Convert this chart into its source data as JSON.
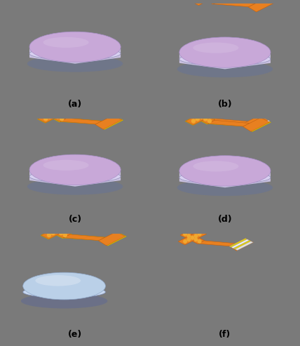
{
  "background_color": "#7a7a7a",
  "panel_labels": [
    "(a)",
    "(b)",
    "(c)",
    "(d)",
    "(e)",
    "(f)"
  ],
  "label_fontsize": 9,
  "wafer_purple_top": "#c8a8d8",
  "wafer_purple_side": "#b090c0",
  "wafer_purple_rim": "#dcd0ec",
  "wafer_blue_top": "#bad0e8",
  "wafer_blue_side": "#90aac8",
  "wafer_blue_rim": "#d0dff0",
  "orange_color": "#e88020",
  "orange_dark": "#c06010",
  "yellow_color": "#e8d000",
  "yellow_dark": "#b09800",
  "white_color": "#e8e8e8",
  "dot_color": "#f0a830",
  "silver_light": "#e0e0e0",
  "silver_mid": "#c0c0c0",
  "silver_dark": "#909090"
}
